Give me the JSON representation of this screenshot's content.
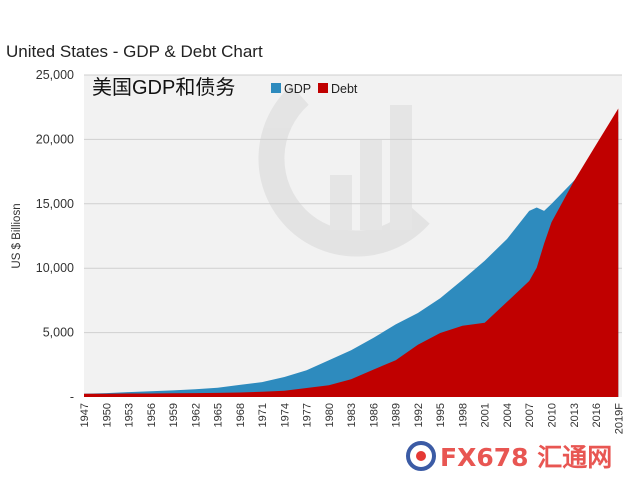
{
  "colors": {
    "gdp": "#2E8BBE",
    "debt": "#C00000",
    "plot_bg": "#F2F2F2",
    "logo_red": "#E53935",
    "logo_blue": "#3B5BA5"
  },
  "watermark": {
    "logo_text": "FX678 汇通网"
  },
  "chart_data": {
    "type": "area",
    "title": "United States - GDP & Debt Chart",
    "subtitle": "美国GDP和债务",
    "ylabel": "US $ Billiosn",
    "xlabel": "",
    "ylim": [
      0,
      25000
    ],
    "yticks": [
      {
        "value": 0,
        "label": "-"
      },
      {
        "value": 5000,
        "label": "5,000"
      },
      {
        "value": 10000,
        "label": "10,000"
      },
      {
        "value": 15000,
        "label": "15,000"
      },
      {
        "value": 20000,
        "label": "20,000"
      },
      {
        "value": 25000,
        "label": "25,000"
      }
    ],
    "grid": true,
    "legend_position": "top-center",
    "xtick_labels": [
      "1947",
      "1950",
      "1953",
      "1956",
      "1959",
      "1962",
      "1965",
      "1968",
      "1971",
      "1974",
      "1977",
      "1980",
      "1983",
      "1986",
      "1989",
      "1992",
      "1995",
      "1998",
      "2001",
      "2004",
      "2007",
      "2010",
      "2013",
      "2016",
      "2019F"
    ],
    "x": [
      1947,
      1950,
      1953,
      1956,
      1959,
      1962,
      1965,
      1968,
      1971,
      1974,
      1977,
      1980,
      1983,
      1986,
      1989,
      1992,
      1995,
      1998,
      2001,
      2004,
      2007,
      2008,
      2009,
      2010,
      2013,
      2016,
      2019
    ],
    "series": [
      {
        "name": "GDP",
        "values": [
          250,
          300,
          380,
          440,
          510,
          600,
          720,
          940,
          1160,
          1550,
          2080,
          2860,
          3630,
          4590,
          5640,
          6520,
          7660,
          9090,
          10580,
          12270,
          14450,
          14710,
          14450,
          14990,
          16780,
          18710,
          21400
        ]
      },
      {
        "name": "Debt",
        "values": [
          260,
          260,
          270,
          270,
          290,
          300,
          320,
          350,
          400,
          480,
          700,
          910,
          1380,
          2130,
          2860,
          4060,
          4970,
          5530,
          5770,
          7380,
          9010,
          10030,
          11910,
          13560,
          16740,
          19570,
          22400
        ]
      }
    ]
  }
}
